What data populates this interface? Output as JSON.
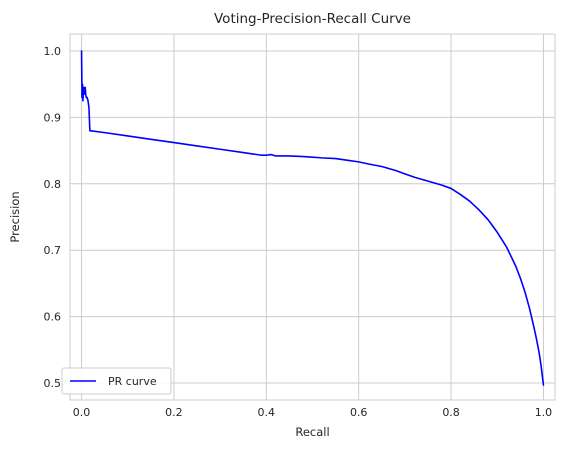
{
  "chart_data": {
    "type": "line",
    "title": "Voting-Precision-Recall Curve",
    "xlabel": "Recall",
    "ylabel": "Precision",
    "xlim": [
      -0.025,
      1.025
    ],
    "ylim": [
      0.4745,
      1.0255
    ],
    "xticks": [
      0.0,
      0.2,
      0.4,
      0.6,
      0.8,
      1.0
    ],
    "xtick_labels": [
      "0.0",
      "0.2",
      "0.4",
      "0.6",
      "0.8",
      "1.0"
    ],
    "yticks": [
      0.5,
      0.6,
      0.7,
      0.8,
      0.9,
      1.0
    ],
    "ytick_labels": [
      "0.5",
      "0.6",
      "0.7",
      "0.8",
      "0.9",
      "1.0"
    ],
    "grid": true,
    "legend_position": "lower-left",
    "series": [
      {
        "name": "PR curve",
        "color": "#0000ff",
        "x": [
          0.0,
          0.001,
          0.002,
          0.003,
          0.004,
          0.005,
          0.006,
          0.007,
          0.008,
          0.009,
          0.01,
          0.012,
          0.014,
          0.016,
          0.018,
          0.05,
          0.1,
          0.15,
          0.2,
          0.25,
          0.3,
          0.35,
          0.39,
          0.4,
          0.41,
          0.42,
          0.45,
          0.48,
          0.5,
          0.52,
          0.55,
          0.58,
          0.6,
          0.62,
          0.65,
          0.68,
          0.7,
          0.72,
          0.75,
          0.78,
          0.8,
          0.82,
          0.84,
          0.86,
          0.88,
          0.9,
          0.92,
          0.94,
          0.95,
          0.96,
          0.97,
          0.98,
          0.985,
          0.99,
          0.993,
          0.996,
          0.998,
          1.0
        ],
        "y": [
          1.0,
          0.93,
          0.95,
          0.925,
          0.94,
          0.945,
          0.935,
          0.94,
          0.945,
          0.935,
          0.93,
          0.93,
          0.925,
          0.915,
          0.88,
          0.877,
          0.872,
          0.867,
          0.862,
          0.857,
          0.852,
          0.847,
          0.843,
          0.843,
          0.844,
          0.842,
          0.842,
          0.841,
          0.84,
          0.839,
          0.838,
          0.835,
          0.833,
          0.83,
          0.826,
          0.82,
          0.815,
          0.81,
          0.804,
          0.798,
          0.793,
          0.784,
          0.774,
          0.761,
          0.746,
          0.727,
          0.705,
          0.676,
          0.658,
          0.637,
          0.612,
          0.582,
          0.566,
          0.548,
          0.535,
          0.52,
          0.508,
          0.497
        ]
      }
    ]
  }
}
